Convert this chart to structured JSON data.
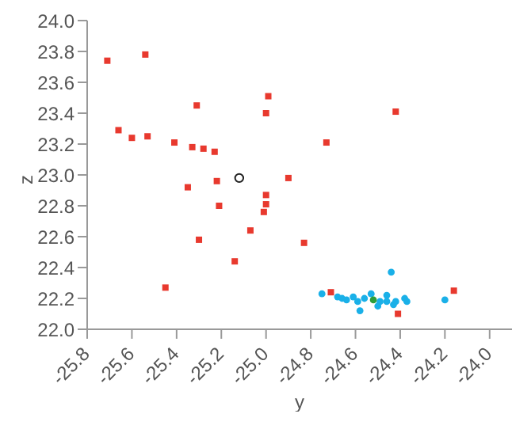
{
  "chart_data": {
    "type": "scatter",
    "xlabel": "y",
    "ylabel": "z",
    "xlim": [
      -25.8,
      -23.9
    ],
    "ylim": [
      22.0,
      24.0
    ],
    "xticks": [
      -25.8,
      -25.6,
      -25.4,
      -25.2,
      {
        "value": -25.0,
        "label": "-25.0"
      },
      -24.8,
      -24.6,
      -24.4,
      -24.2,
      {
        "value": -24.0,
        "label": "-24.0"
      }
    ],
    "yticks": [
      {
        "value": 22.0,
        "label": "22.0"
      },
      {
        "value": 22.2,
        "label": "22.2"
      },
      {
        "value": 22.4,
        "label": "22.4"
      },
      {
        "value": 22.6,
        "label": "22.6"
      },
      {
        "value": 22.8,
        "label": "22.8"
      },
      {
        "value": 23.0,
        "label": "23.0"
      },
      {
        "value": 23.2,
        "label": "23.2"
      },
      {
        "value": 23.4,
        "label": "23.4"
      },
      {
        "value": 23.6,
        "label": "23.6"
      },
      {
        "value": 23.8,
        "label": "23.8"
      },
      {
        "value": 24.0,
        "label": "24.0"
      }
    ],
    "grid": false,
    "legend": false,
    "series": [
      {
        "color": "#e8392e",
        "marker": "square",
        "x": [
          -25.71,
          -25.54,
          -25.66,
          -25.6,
          -25.53,
          -25.41,
          -25.31,
          -25.33,
          -25.28,
          -25.23,
          -25.35,
          -25.22,
          -24.99,
          -25.0,
          -24.42,
          -24.73,
          -24.9,
          -25.0,
          -25.21,
          -25.0,
          -25.01,
          -25.3,
          -25.07,
          -25.14,
          -25.45,
          -24.83,
          -24.71,
          -24.16,
          -24.41
        ],
        "values": [
          23.74,
          23.78,
          23.29,
          23.24,
          23.25,
          23.21,
          23.45,
          23.18,
          23.17,
          23.15,
          22.92,
          22.96,
          23.51,
          23.4,
          23.41,
          23.21,
          22.98,
          22.87,
          22.8,
          22.81,
          22.76,
          22.58,
          22.64,
          22.44,
          22.27,
          22.56,
          22.24,
          22.25,
          22.1
        ]
      },
      {
        "color": "#1ab0e8",
        "marker": "circle",
        "x": [
          -24.75,
          -24.68,
          -24.66,
          -24.64,
          -24.61,
          -24.59,
          -24.58,
          -24.56,
          -24.54,
          -24.53,
          -24.5,
          -24.49,
          -24.46,
          -24.46,
          -24.44,
          -24.43,
          -24.42,
          -24.38,
          -24.37,
          -24.2
        ],
        "values": [
          22.23,
          22.21,
          22.2,
          22.19,
          22.21,
          22.18,
          22.12,
          22.2,
          null,
          22.23,
          22.15,
          22.18,
          22.22,
          22.18,
          22.37,
          22.16,
          22.18,
          22.2,
          22.18,
          22.19
        ]
      },
      {
        "color": "#2e9e3a",
        "marker": "circle",
        "x": [
          -24.52
        ],
        "values": [
          22.19
        ]
      },
      {
        "color": "#222222",
        "marker": "open_circle",
        "x": [
          -25.12
        ],
        "values": [
          22.98
        ]
      }
    ]
  }
}
